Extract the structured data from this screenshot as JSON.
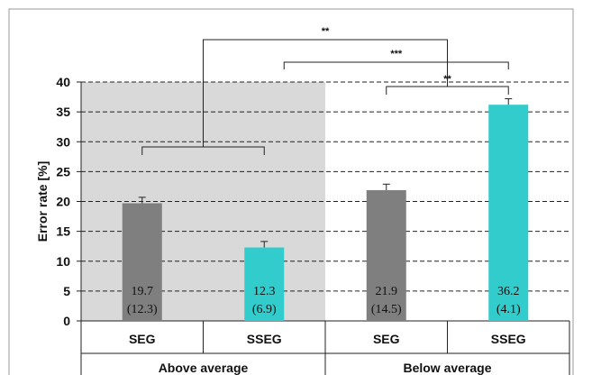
{
  "chart_data": {
    "type": "bar",
    "ylabel": "Error rate [%]",
    "ylim": [
      0,
      40
    ],
    "yticks": [
      0,
      5,
      10,
      15,
      20,
      25,
      30,
      35,
      40
    ],
    "grid": "horizontal-dashed",
    "groups": [
      {
        "label": "Above average",
        "shaded": true,
        "shade_color": "#d9d9d9"
      },
      {
        "label": "Below average",
        "shaded": false
      }
    ],
    "bars": [
      {
        "group": 0,
        "category": "SEG",
        "value": 19.7,
        "sd": 12.3,
        "value_label": "19.7",
        "sd_label": "(12.3)",
        "error": 1.0,
        "color": "#7f7f7f"
      },
      {
        "group": 0,
        "category": "SSEG",
        "value": 12.3,
        "sd": 6.9,
        "value_label": "12.3",
        "sd_label": "(6.9)",
        "error": 1.0,
        "color": "#33cccc"
      },
      {
        "group": 1,
        "category": "SEG",
        "value": 21.9,
        "sd": 14.5,
        "value_label": "21.9",
        "sd_label": "(14.5)",
        "error": 1.0,
        "color": "#7f7f7f"
      },
      {
        "group": 1,
        "category": "SSEG",
        "value": 36.2,
        "sd": 4.1,
        "value_label": "36.2",
        "sd_label": "(4.1)",
        "error": 1.0,
        "color": "#33cccc"
      }
    ],
    "significance": [
      {
        "label": "**",
        "between": "above-average-group vs below-average-group"
      },
      {
        "label": "***",
        "between": "above SSEG vs below SSEG"
      },
      {
        "label": "**",
        "between": "below SEG vs below SSEG"
      }
    ]
  }
}
